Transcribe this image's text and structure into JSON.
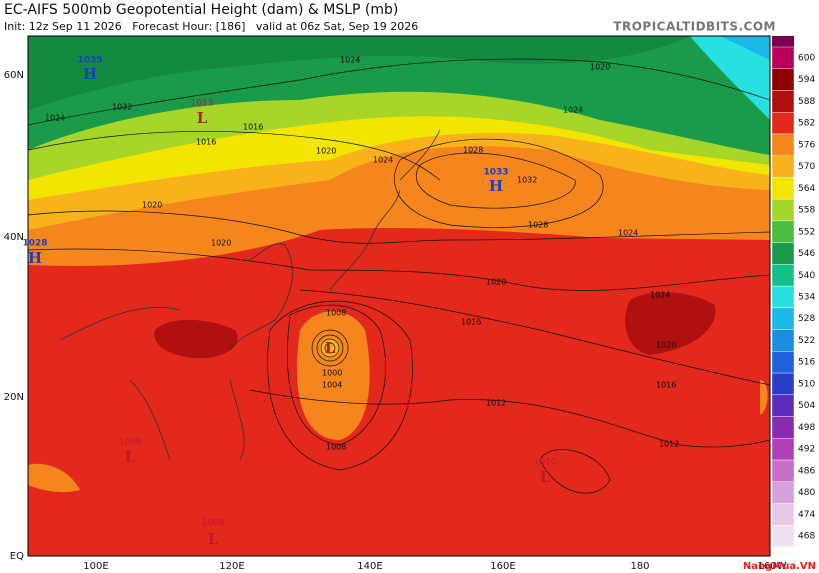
{
  "header": {
    "title": "EC-AIFS 500mb Geopotential Height (dam) & MSLP (mb)",
    "subtitle": "Init: 12z Sep 11 2026   Forecast Hour: [186]   valid at 06z Sat, Sep 19 2026",
    "brand": "TROPICALTIDBITS.COM"
  },
  "axes": {
    "lat_labels": [
      "60N",
      "40N",
      "20N",
      "EQ"
    ],
    "lon_labels": [
      "100E",
      "120E",
      "140E",
      "160E",
      "180",
      "160W"
    ]
  },
  "pressure_centers": [
    {
      "symbol": "H",
      "value": "1035"
    },
    {
      "symbol": "L",
      "value": "1013"
    },
    {
      "symbol": "H",
      "value": "1033"
    },
    {
      "symbol": "H",
      "value": "1028"
    },
    {
      "symbol": "L",
      "value": "1008"
    },
    {
      "symbol": "L",
      "value": "1010"
    },
    {
      "symbol": "L",
      "value": "1008"
    },
    {
      "symbol": "L"
    }
  ],
  "isobar_labels": [
    "1024",
    "1032",
    "1024",
    "1020",
    "1024",
    "1016",
    "1016",
    "1020",
    "1024",
    "1028",
    "1032",
    "1028",
    "1024",
    "1020",
    "1020",
    "1020",
    "1016",
    "1024",
    "1020",
    "1016",
    "1012",
    "1012",
    "1008",
    "1008",
    "1004",
    "1000"
  ],
  "colorbar": {
    "levels": [
      {
        "value": 600,
        "color": "#b8005c"
      },
      {
        "value": 594,
        "color": "#8b0000"
      },
      {
        "value": 588,
        "color": "#b01010"
      },
      {
        "value": 582,
        "color": "#e3281c"
      },
      {
        "value": 576,
        "color": "#f5861e"
      },
      {
        "value": 570,
        "color": "#f9b21c"
      },
      {
        "value": 564,
        "color": "#f2e600"
      },
      {
        "value": 558,
        "color": "#a6d62a"
      },
      {
        "value": 552,
        "color": "#4bbd3e"
      },
      {
        "value": 546,
        "color": "#1a9b4a"
      },
      {
        "value": 540,
        "color": "#14c08a"
      },
      {
        "value": 534,
        "color": "#28e0e0"
      },
      {
        "value": 528,
        "color": "#1cb8e8"
      },
      {
        "value": 522,
        "color": "#1a8fe0"
      },
      {
        "value": 516,
        "color": "#2060d8"
      },
      {
        "value": 510,
        "color": "#2a3cc8"
      },
      {
        "value": 504,
        "color": "#5a2eb8"
      },
      {
        "value": 498,
        "color": "#8a2ab0"
      },
      {
        "value": 492,
        "color": "#b040b8"
      },
      {
        "value": 486,
        "color": "#c870c8"
      },
      {
        "value": 480,
        "color": "#d8a0d8"
      },
      {
        "value": 474,
        "color": "#e6c8e6"
      },
      {
        "value": 468,
        "color": "#f0e0f0"
      }
    ]
  },
  "watermark": "NangMua.VN"
}
